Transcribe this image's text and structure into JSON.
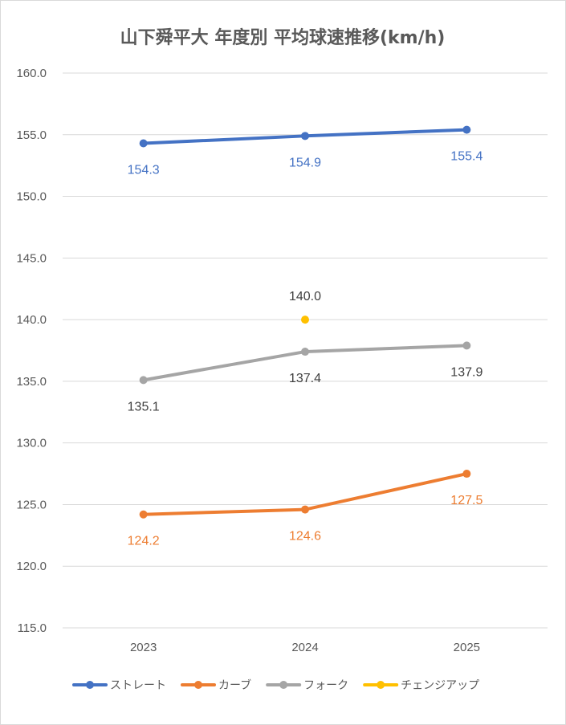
{
  "chart_data": {
    "type": "line",
    "title": "山下舜平大 年度別 平均球速推移(km/h)",
    "categories": [
      "2023",
      "2024",
      "2025"
    ],
    "ylim": [
      115.0,
      160.0
    ],
    "ystep": 5,
    "yticks": [
      "115.0",
      "120.0",
      "125.0",
      "130.0",
      "135.0",
      "140.0",
      "145.0",
      "150.0",
      "155.0",
      "160.0"
    ],
    "grid": true,
    "legend_position": "bottom",
    "series": [
      {
        "name": "ストレート",
        "color": "#4472c4",
        "values": [
          154.3,
          154.9,
          155.4
        ],
        "labels": [
          "154.3",
          "154.9",
          "155.4"
        ],
        "label_color": "#4472c4",
        "label_position": "below"
      },
      {
        "name": "カーブ",
        "color": "#ed7d31",
        "values": [
          124.2,
          124.6,
          127.5
        ],
        "labels": [
          "124.2",
          "124.6",
          "127.5"
        ],
        "label_color": "#ed7d31",
        "label_position": "below"
      },
      {
        "name": "フォーク",
        "color": "#a5a5a5",
        "values": [
          135.1,
          137.4,
          137.9
        ],
        "labels": [
          "135.1",
          "137.4",
          "137.9"
        ],
        "label_color": "#404040",
        "label_position": "below"
      },
      {
        "name": "チェンジアップ",
        "color": "#ffc000",
        "values": [
          null,
          140.0,
          null
        ],
        "labels": [
          null,
          "140.0",
          null
        ],
        "label_color": "#404040",
        "label_position": "above"
      }
    ]
  }
}
